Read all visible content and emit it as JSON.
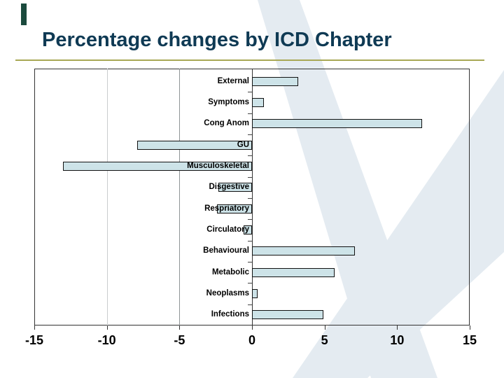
{
  "slide": {
    "title": "Percentage changes by ICD Chapter",
    "title_color": "#0f3a54",
    "rule_color": "#a8a855",
    "accent_color": "#1b4a3d",
    "swoosh_color": "#e4ebf1"
  },
  "chart_data": {
    "type": "bar",
    "orientation": "horizontal",
    "title": "",
    "xlabel": "",
    "ylabel": "",
    "categories": [
      "External",
      "Symptoms",
      "Cong Anom",
      "Musculoskeletal",
      "GU",
      "Disgestive",
      "Respriatory",
      "Circulatory",
      "Behavioural",
      "Metabolic",
      "Neoplasms",
      "Infections"
    ],
    "categories_top_to_bottom": [
      "External",
      "Symptoms",
      "Cong Anom",
      "GU",
      "Musculoskeletal",
      "Disgestive",
      "Respriatory",
      "Circulatory",
      "Behavioural",
      "Metabolic",
      "Neoplasms",
      "Infections"
    ],
    "values": [
      3.2,
      0.8,
      11.7,
      -7.9,
      -13.0,
      -2.3,
      -2.4,
      -0.6,
      7.1,
      5.7,
      0.4,
      4.9
    ],
    "xlim": [
      -15,
      15
    ],
    "x_ticks": [
      -15,
      -10,
      -5,
      0,
      5,
      10,
      15
    ],
    "x_tick_labels": [
      "-15",
      "-10",
      "-5",
      "0",
      "5",
      "10",
      "15"
    ],
    "gridlines_at": [
      -10,
      -5
    ],
    "gridline_colors": [
      "#c9ccce",
      "#8f9496"
    ],
    "legend": "none",
    "bar_fill": "#cde3e8",
    "bar_border": "#111111"
  }
}
